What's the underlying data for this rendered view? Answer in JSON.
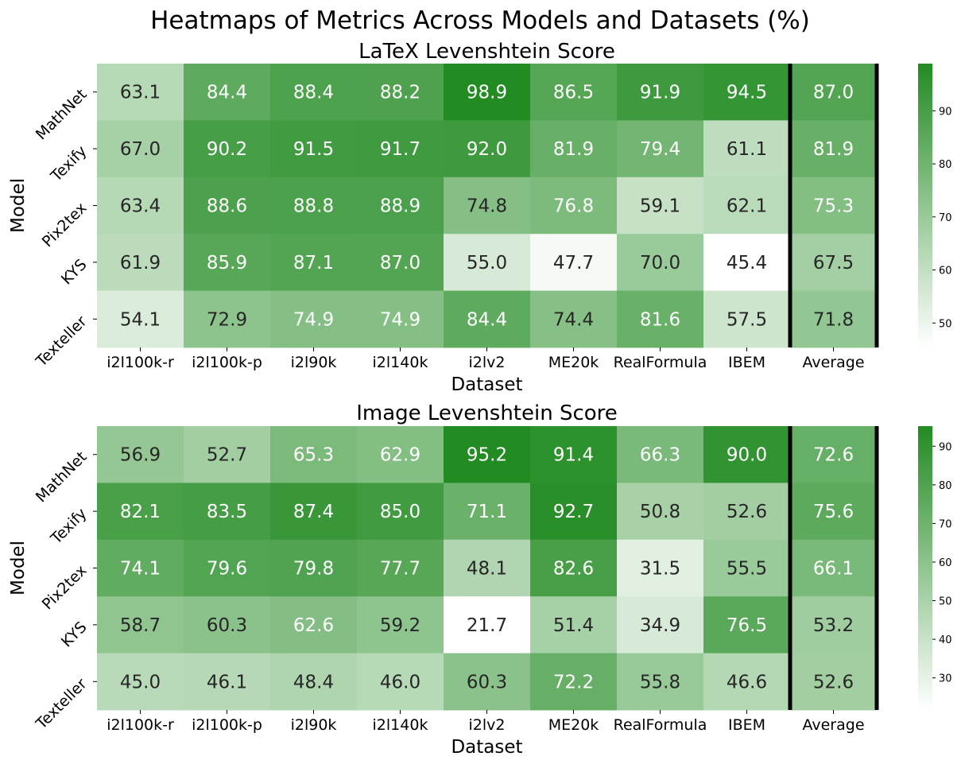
{
  "title": "Heatmaps of Metrics Across Models and Datasets (%)",
  "colors": {
    "low": "#ffffff",
    "high": "#228b22",
    "text_dark": "#262626",
    "text_light": "#ffffff",
    "separator": "#000000"
  },
  "chart_data": [
    {
      "type": "heatmap",
      "title": "LaTeX Levenshtein Score",
      "xlabel": "Dataset",
      "ylabel": "Model",
      "categories": [
        "i2l100k-r",
        "i2l100k-p",
        "i2l90k",
        "i2l140k",
        "i2lv2",
        "ME20k",
        "RealFormula",
        "IBEM",
        "Average"
      ],
      "rows": [
        "MathNet",
        "Texify",
        "Pix2tex",
        "KYS",
        "Texteller"
      ],
      "values": [
        [
          63.1,
          84.4,
          88.4,
          88.2,
          98.9,
          86.5,
          91.9,
          94.5,
          87.0
        ],
        [
          67.0,
          90.2,
          91.5,
          91.7,
          92.0,
          81.9,
          79.4,
          61.1,
          81.9
        ],
        [
          63.4,
          88.6,
          88.8,
          88.9,
          74.8,
          76.8,
          59.1,
          62.1,
          75.3
        ],
        [
          61.9,
          85.9,
          87.1,
          87.0,
          55.0,
          47.7,
          70.0,
          45.4,
          67.5
        ],
        [
          54.1,
          72.9,
          74.9,
          74.9,
          84.4,
          74.4,
          81.6,
          57.5,
          71.8
        ]
      ],
      "color_range": [
        45.4,
        98.9
      ],
      "colorbar_ticks": [
        50,
        60,
        70,
        80,
        90
      ]
    },
    {
      "type": "heatmap",
      "title": "Image Levenshtein Score",
      "xlabel": "Dataset",
      "ylabel": "Model",
      "categories": [
        "i2l100k-r",
        "i2l100k-p",
        "i2l90k",
        "i2l140k",
        "i2lv2",
        "ME20k",
        "RealFormula",
        "IBEM",
        "Average"
      ],
      "rows": [
        "MathNet",
        "Texify",
        "Pix2tex",
        "KYS",
        "Texteller"
      ],
      "values": [
        [
          56.9,
          52.7,
          65.3,
          62.9,
          95.2,
          91.4,
          66.3,
          90.0,
          72.6
        ],
        [
          82.1,
          83.5,
          87.4,
          85.0,
          71.1,
          92.7,
          50.8,
          52.6,
          75.6
        ],
        [
          74.1,
          79.6,
          79.8,
          77.7,
          48.1,
          82.6,
          31.5,
          55.5,
          66.1
        ],
        [
          58.7,
          60.3,
          62.6,
          59.2,
          21.7,
          51.4,
          34.9,
          76.5,
          53.2
        ],
        [
          45.0,
          46.1,
          48.4,
          46.0,
          60.3,
          72.2,
          55.8,
          46.6,
          52.6
        ]
      ],
      "color_range": [
        21.7,
        95.2
      ],
      "colorbar_ticks": [
        30,
        40,
        50,
        60,
        70,
        80,
        90
      ]
    }
  ]
}
